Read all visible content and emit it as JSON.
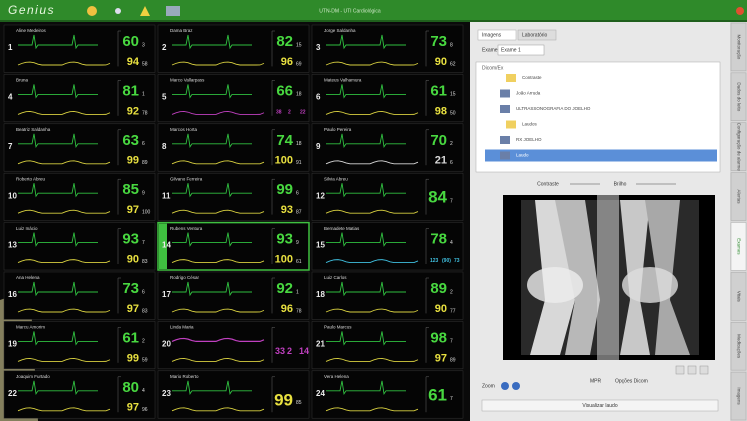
{
  "header": {
    "logo": "Genius",
    "title": "UTN-DM - UTI Cardiológica"
  },
  "monitor": {
    "cells": [
      {
        "bed": 1,
        "name": "Aline Medeiros",
        "hr": 60,
        "hr_sub": 3,
        "spo2": 94,
        "spo2_sub": 58
      },
      {
        "bed": 2,
        "name": "Dama Braz",
        "hr": 82,
        "hr_sub": 15,
        "spo2": 96,
        "spo2_sub": 69
      },
      {
        "bed": 3,
        "name": "Jorge Saldanha",
        "hr": 73,
        "hr_sub": 8,
        "spo2": 90,
        "spo2_sub": 62
      },
      {
        "bed": 4,
        "name": "Bruna",
        "hr": 81,
        "hr_sub": 1,
        "spo2": 92,
        "spo2_sub": 78
      },
      {
        "bed": 5,
        "name": "Marco Vallarpass",
        "hr": 66,
        "hr_sub": 18,
        "pressure": [
          38,
          2,
          22
        ],
        "wave2_color": "#c040c0"
      },
      {
        "bed": 6,
        "name": "Mateus Valhamura",
        "hr": 61,
        "hr_sub": 15,
        "spo2": 98,
        "spo2_sub": 50
      },
      {
        "bed": 7,
        "name": "Beatriz Saldanha",
        "hr": 63,
        "hr_sub": 6,
        "spo2": 99,
        "spo2_sub": 89
      },
      {
        "bed": 8,
        "name": "Marcos Horta",
        "hr": 74,
        "hr_sub": 18,
        "spo2": 100,
        "spo2_sub": 91
      },
      {
        "bed": 9,
        "name": "Paulo Pereira",
        "hr": 70,
        "hr_sub": 2,
        "spo2": 21,
        "spo2_sub": 6,
        "wave2_color": "#d8d8d8"
      },
      {
        "bed": 10,
        "name": "Roberto Abreu",
        "hr": 85,
        "hr_sub": 9,
        "spo2": 97,
        "spo2_sub": 100
      },
      {
        "bed": 11,
        "name": "Gilvano Ferreira",
        "hr": 99,
        "hr_sub": 6,
        "spo2": 93,
        "spo2_sub": 87
      },
      {
        "bed": 12,
        "name": "Silvia Abreu",
        "hr": 84,
        "hr_sub": 7
      },
      {
        "bed": 13,
        "name": "Luiz Inácio",
        "hr": 93,
        "hr_sub": 7,
        "spo2": 90,
        "spo2_sub": 83
      },
      {
        "bed": 14,
        "name": "Rubens Ventura",
        "hr": 93,
        "hr_sub": 9,
        "spo2": 100,
        "spo2_sub": 61,
        "selected": true
      },
      {
        "bed": 15,
        "name": "Bernadete Matias",
        "hr": 78,
        "hr_sub": 4,
        "pressure": [
          "123",
          "(90)",
          "73"
        ],
        "wave2_color": "#40c0e0"
      },
      {
        "bed": 16,
        "name": "Ana Helena",
        "hr": 73,
        "hr_sub": 6,
        "spo2": 97,
        "spo2_sub": 83
      },
      {
        "bed": 17,
        "name": "Rodrigo César",
        "hr": 92,
        "hr_sub": 1,
        "spo2": 96,
        "spo2_sub": 78
      },
      {
        "bed": 18,
        "name": "Luiz Carlos",
        "hr": 89,
        "hr_sub": 2,
        "spo2": 90,
        "spo2_sub": 77
      },
      {
        "bed": 19,
        "name": "Marcu Amorim",
        "hr": 61,
        "hr_sub": 2,
        "spo2": 99,
        "spo2_sub": 59
      },
      {
        "bed": 20,
        "name": "Linda Maria",
        "pressure": [
          33,
          2,
          14
        ],
        "wave1_color": "#c040c0"
      },
      {
        "bed": 21,
        "name": "Paulo Marcus",
        "hr": 98,
        "hr_sub": 7,
        "spo2": 97,
        "spo2_sub": 89
      },
      {
        "bed": 22,
        "name": "Joaquim Furtado",
        "hr": 80,
        "hr_sub": 4,
        "spo2": 97,
        "spo2_sub": 96
      },
      {
        "bed": 23,
        "name": "Mario Roberto",
        "spo2": 99,
        "spo2_sub": 85
      },
      {
        "bed": 24,
        "name": "Vera Helena",
        "hr": 61,
        "hr_sub": 7
      }
    ]
  },
  "viewer": {
    "tabs": [
      "Imagens",
      "Laboratório"
    ],
    "exam_label": "Exame:",
    "exam_value": "Exame 1",
    "tree_title": "Dicom/Ex",
    "tree_items": [
      "Contraste",
      "João Arruda",
      "ULTRASSONOGRAFIA DO JOELHO",
      "Laudos",
      "RX JOELHO",
      "Laudo"
    ],
    "contrast_label": "Contraste",
    "brightness_label": "Brilho",
    "zoom_label": "Zoom",
    "mpr_label": "MPR",
    "dicom_options_label": "Opções Dicom",
    "report_button": "Visualizar laudo"
  },
  "side_tabs": [
    "Monitoração",
    "Dados do leito",
    "Configuração de alarme",
    "Alertas",
    "Exames",
    "Vitais",
    "Medicações",
    "Imagens"
  ]
}
